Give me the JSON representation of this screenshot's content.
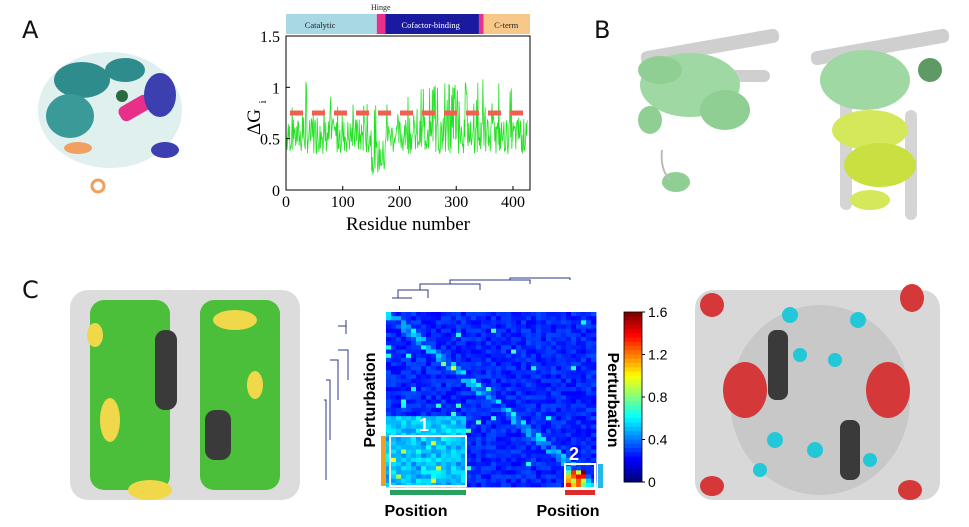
{
  "panels": {
    "a_label": "A",
    "b_label": "B",
    "c_label": "C"
  },
  "chart_data": [
    {
      "type": "line",
      "xlabel": "Residue number",
      "ylabel": "ΔG",
      "ylabel_subscript": "i",
      "xlim": [
        0,
        430
      ],
      "ylim": [
        0,
        1.5
      ],
      "x_ticks": [
        0,
        100,
        200,
        300,
        400
      ],
      "y_ticks": [
        0,
        0.5,
        1,
        1.5
      ],
      "y_tick_labels": [
        "0",
        "0.5",
        "1",
        "1.5"
      ],
      "threshold": 0.75,
      "series_color": "#22e022",
      "threshold_color": "#f06050",
      "domains": [
        {
          "label": "Catalytic",
          "start": 0,
          "end": 160,
          "color": "#a8d8e4"
        },
        {
          "label": "Hinge",
          "start": 160,
          "end": 175,
          "color": "#e8308a"
        },
        {
          "label": "Cofactor-binding",
          "start": 175,
          "end": 340,
          "color": "#1a1aa0"
        },
        {
          "label": "",
          "start": 340,
          "end": 348,
          "color": "#e8308a"
        },
        {
          "label": "C-term",
          "start": 348,
          "end": 430,
          "color": "#f7c88a"
        }
      ]
    },
    {
      "type": "heatmap",
      "colorbar_ticks": [
        "0",
        "0.4",
        "0.8",
        "1.2",
        "1.6"
      ],
      "colorbar_range": [
        0,
        1.6
      ],
      "axis_labels": {
        "left": "Perturbation",
        "right": "Perturbation",
        "bottom_1": "Position",
        "bottom_2": "Position"
      },
      "cluster_labels": [
        "1",
        "2"
      ]
    }
  ]
}
